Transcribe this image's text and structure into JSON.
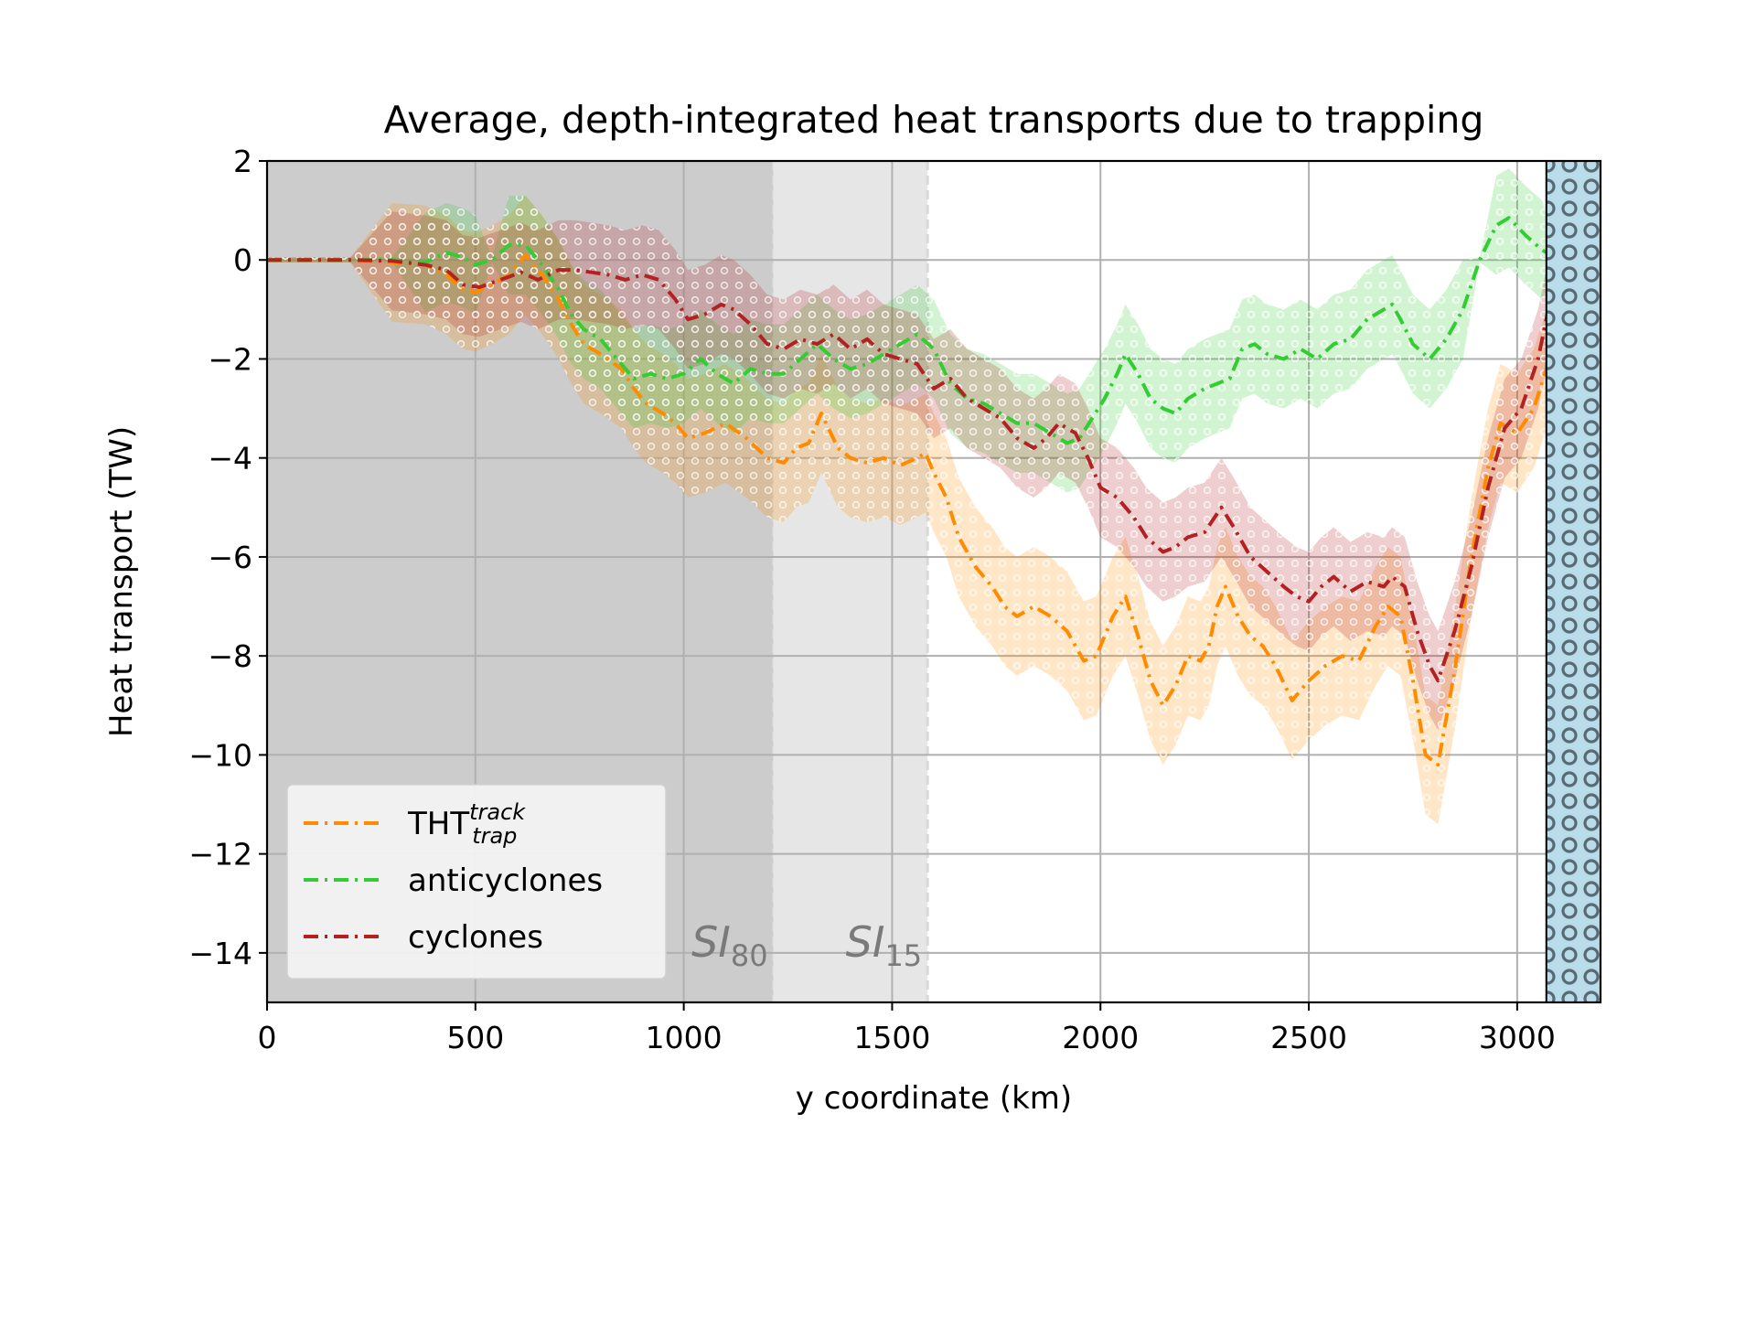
{
  "chart_data": {
    "type": "line",
    "title": "Average, depth-integrated heat transports due to trapping",
    "xlabel": "y coordinate (km)",
    "ylabel": "Heat transport (TW)",
    "xlim": [
      0,
      3200
    ],
    "ylim": [
      -15,
      2
    ],
    "xticks": [
      0,
      500,
      1000,
      1500,
      2000,
      2500,
      3000
    ],
    "yticks": [
      2,
      0,
      -2,
      -4,
      -6,
      -8,
      -10,
      -12,
      -14
    ],
    "xtick_labels": [
      "0",
      "500",
      "1000",
      "1500",
      "2000",
      "2500",
      "3000"
    ],
    "ytick_labels": [
      "2",
      "0",
      "−2",
      "−4",
      "−6",
      "−8",
      "−10",
      "−12",
      "−14"
    ],
    "grid": true,
    "legend_position": "lower-left",
    "regions": [
      {
        "x0": 0,
        "x1": 1215,
        "color": "#cccccc",
        "label_main": "SI",
        "label_sub": "80"
      },
      {
        "x0": 1215,
        "x1": 1585,
        "color": "#e6e6e6",
        "label_main": "SI",
        "label_sub": "15"
      }
    ],
    "boundary_band": {
      "x0": 3070,
      "x1": 3200,
      "color": "#b9dcea",
      "hatch": "rings"
    },
    "series": [
      {
        "name": "THT",
        "name_sup": "track",
        "name_sub": "trap",
        "color": "#ff8c00",
        "points": [
          [
            0,
            0
          ],
          [
            200,
            0
          ],
          [
            300,
            -0.05
          ],
          [
            380,
            -0.1
          ],
          [
            430,
            -0.3
          ],
          [
            470,
            -0.6
          ],
          [
            500,
            -0.65
          ],
          [
            540,
            -0.5
          ],
          [
            580,
            -0.3
          ],
          [
            620,
            0.1
          ],
          [
            660,
            -0.3
          ],
          [
            700,
            -0.8
          ],
          [
            730,
            -1.3
          ],
          [
            760,
            -1.7
          ],
          [
            800,
            -1.9
          ],
          [
            850,
            -2.2
          ],
          [
            880,
            -2.6
          ],
          [
            910,
            -2.9
          ],
          [
            950,
            -3.1
          ],
          [
            980,
            -3.3
          ],
          [
            1010,
            -3.6
          ],
          [
            1050,
            -3.5
          ],
          [
            1100,
            -3.3
          ],
          [
            1150,
            -3.6
          ],
          [
            1200,
            -4.0
          ],
          [
            1240,
            -4.1
          ],
          [
            1270,
            -3.8
          ],
          [
            1300,
            -3.7
          ],
          [
            1330,
            -3.1
          ],
          [
            1370,
            -3.8
          ],
          [
            1400,
            -4.0
          ],
          [
            1440,
            -4.1
          ],
          [
            1480,
            -4.0
          ],
          [
            1520,
            -4.15
          ],
          [
            1560,
            -4.0
          ],
          [
            1580,
            -3.9
          ],
          [
            1600,
            -4.3
          ],
          [
            1630,
            -4.8
          ],
          [
            1660,
            -5.6
          ],
          [
            1700,
            -6.2
          ],
          [
            1740,
            -6.6
          ],
          [
            1770,
            -7.0
          ],
          [
            1800,
            -7.2
          ],
          [
            1840,
            -7.0
          ],
          [
            1880,
            -7.2
          ],
          [
            1920,
            -7.5
          ],
          [
            1960,
            -8.1
          ],
          [
            1990,
            -8.0
          ],
          [
            2030,
            -7.2
          ],
          [
            2060,
            -6.8
          ],
          [
            2090,
            -7.6
          ],
          [
            2120,
            -8.5
          ],
          [
            2150,
            -9.0
          ],
          [
            2180,
            -8.6
          ],
          [
            2210,
            -8.0
          ],
          [
            2240,
            -8.1
          ],
          [
            2260,
            -7.8
          ],
          [
            2280,
            -7.0
          ],
          [
            2300,
            -6.6
          ],
          [
            2330,
            -7.2
          ],
          [
            2360,
            -7.6
          ],
          [
            2390,
            -7.8
          ],
          [
            2420,
            -8.2
          ],
          [
            2460,
            -8.9
          ],
          [
            2500,
            -8.5
          ],
          [
            2540,
            -8.2
          ],
          [
            2580,
            -8.0
          ],
          [
            2620,
            -8.1
          ],
          [
            2660,
            -7.4
          ],
          [
            2690,
            -7.0
          ],
          [
            2720,
            -7.2
          ],
          [
            2750,
            -8.5
          ],
          [
            2780,
            -10.0
          ],
          [
            2810,
            -10.2
          ],
          [
            2850,
            -8.3
          ],
          [
            2890,
            -6.0
          ],
          [
            2930,
            -4.2
          ],
          [
            2960,
            -3.3
          ],
          [
            3000,
            -3.5
          ],
          [
            3040,
            -3.0
          ],
          [
            3070,
            -2.2
          ],
          [
            3100,
            -0.3
          ],
          [
            3120,
            0
          ],
          [
            3200,
            0
          ]
        ],
        "band": 1.2
      },
      {
        "name": "anticyclones",
        "color": "#32cd32",
        "points": [
          [
            0,
            0
          ],
          [
            200,
            0
          ],
          [
            300,
            0
          ],
          [
            380,
            -0.05
          ],
          [
            430,
            0.15
          ],
          [
            470,
            0.05
          ],
          [
            500,
            -0.1
          ],
          [
            540,
            0.0
          ],
          [
            580,
            0.3
          ],
          [
            620,
            0.3
          ],
          [
            660,
            -0.1
          ],
          [
            700,
            -0.6
          ],
          [
            730,
            -1.1
          ],
          [
            760,
            -1.4
          ],
          [
            800,
            -1.6
          ],
          [
            840,
            -2.0
          ],
          [
            880,
            -2.4
          ],
          [
            920,
            -2.3
          ],
          [
            960,
            -2.4
          ],
          [
            1000,
            -2.3
          ],
          [
            1040,
            -2.0
          ],
          [
            1080,
            -2.3
          ],
          [
            1120,
            -2.5
          ],
          [
            1160,
            -2.2
          ],
          [
            1200,
            -2.3
          ],
          [
            1240,
            -2.3
          ],
          [
            1280,
            -2.0
          ],
          [
            1320,
            -1.7
          ],
          [
            1360,
            -2.0
          ],
          [
            1400,
            -2.2
          ],
          [
            1440,
            -2.1
          ],
          [
            1480,
            -1.9
          ],
          [
            1520,
            -1.7
          ],
          [
            1560,
            -1.5
          ],
          [
            1600,
            -1.8
          ],
          [
            1640,
            -2.5
          ],
          [
            1680,
            -2.8
          ],
          [
            1720,
            -2.9
          ],
          [
            1760,
            -3.1
          ],
          [
            1800,
            -3.3
          ],
          [
            1840,
            -3.3
          ],
          [
            1880,
            -3.5
          ],
          [
            1920,
            -3.7
          ],
          [
            1950,
            -3.6
          ],
          [
            1980,
            -3.2
          ],
          [
            2010,
            -2.8
          ],
          [
            2040,
            -2.3
          ],
          [
            2060,
            -1.9
          ],
          [
            2090,
            -2.3
          ],
          [
            2120,
            -2.8
          ],
          [
            2150,
            -3.0
          ],
          [
            2180,
            -3.1
          ],
          [
            2210,
            -2.8
          ],
          [
            2250,
            -2.6
          ],
          [
            2280,
            -2.5
          ],
          [
            2310,
            -2.4
          ],
          [
            2340,
            -1.8
          ],
          [
            2370,
            -1.7
          ],
          [
            2400,
            -1.9
          ],
          [
            2440,
            -2.0
          ],
          [
            2480,
            -1.8
          ],
          [
            2520,
            -2.0
          ],
          [
            2560,
            -1.7
          ],
          [
            2600,
            -1.6
          ],
          [
            2640,
            -1.2
          ],
          [
            2680,
            -1.0
          ],
          [
            2700,
            -0.9
          ],
          [
            2720,
            -1.2
          ],
          [
            2750,
            -1.7
          ],
          [
            2790,
            -2.0
          ],
          [
            2830,
            -1.6
          ],
          [
            2870,
            -1.0
          ],
          [
            2910,
            0.0
          ],
          [
            2950,
            0.7
          ],
          [
            2980,
            0.85
          ],
          [
            3020,
            0.5
          ],
          [
            3060,
            0.2
          ],
          [
            3100,
            0.0
          ],
          [
            3200,
            0.0
          ]
        ],
        "band": 1.0
      },
      {
        "name": "cyclones",
        "color": "#b22222",
        "points": [
          [
            0,
            0
          ],
          [
            200,
            0
          ],
          [
            300,
            -0.02
          ],
          [
            380,
            -0.1
          ],
          [
            430,
            -0.2
          ],
          [
            470,
            -0.5
          ],
          [
            510,
            -0.55
          ],
          [
            560,
            -0.4
          ],
          [
            610,
            -0.25
          ],
          [
            650,
            -0.4
          ],
          [
            700,
            -0.2
          ],
          [
            740,
            -0.2
          ],
          [
            780,
            -0.25
          ],
          [
            820,
            -0.3
          ],
          [
            860,
            -0.4
          ],
          [
            900,
            -0.3
          ],
          [
            940,
            -0.4
          ],
          [
            980,
            -0.8
          ],
          [
            1010,
            -1.2
          ],
          [
            1050,
            -1.1
          ],
          [
            1090,
            -0.9
          ],
          [
            1120,
            -1.0
          ],
          [
            1160,
            -1.3
          ],
          [
            1200,
            -1.7
          ],
          [
            1240,
            -1.8
          ],
          [
            1280,
            -1.6
          ],
          [
            1320,
            -1.7
          ],
          [
            1360,
            -1.5
          ],
          [
            1400,
            -1.8
          ],
          [
            1440,
            -1.6
          ],
          [
            1480,
            -1.9
          ],
          [
            1520,
            -2.0
          ],
          [
            1560,
            -2.1
          ],
          [
            1600,
            -2.6
          ],
          [
            1640,
            -2.4
          ],
          [
            1680,
            -2.8
          ],
          [
            1720,
            -3.0
          ],
          [
            1760,
            -3.2
          ],
          [
            1800,
            -3.6
          ],
          [
            1840,
            -3.8
          ],
          [
            1870,
            -3.6
          ],
          [
            1900,
            -3.3
          ],
          [
            1940,
            -3.5
          ],
          [
            1970,
            -4.0
          ],
          [
            2000,
            -4.6
          ],
          [
            2040,
            -4.8
          ],
          [
            2080,
            -5.2
          ],
          [
            2110,
            -5.6
          ],
          [
            2150,
            -5.9
          ],
          [
            2180,
            -5.8
          ],
          [
            2210,
            -5.6
          ],
          [
            2250,
            -5.5
          ],
          [
            2290,
            -5.0
          ],
          [
            2320,
            -5.4
          ],
          [
            2360,
            -6.0
          ],
          [
            2400,
            -6.3
          ],
          [
            2440,
            -6.6
          ],
          [
            2470,
            -6.8
          ],
          [
            2500,
            -6.9
          ],
          [
            2530,
            -6.6
          ],
          [
            2560,
            -6.4
          ],
          [
            2600,
            -6.7
          ],
          [
            2640,
            -6.5
          ],
          [
            2680,
            -6.6
          ],
          [
            2700,
            -6.4
          ],
          [
            2730,
            -6.6
          ],
          [
            2760,
            -7.5
          ],
          [
            2790,
            -8.2
          ],
          [
            2810,
            -8.5
          ],
          [
            2850,
            -7.5
          ],
          [
            2890,
            -6.2
          ],
          [
            2930,
            -4.6
          ],
          [
            2970,
            -3.4
          ],
          [
            3010,
            -3.0
          ],
          [
            3050,
            -2.0
          ],
          [
            3080,
            -0.8
          ],
          [
            3110,
            0.0
          ],
          [
            3200,
            0.0
          ]
        ],
        "band": 1.0
      }
    ]
  }
}
